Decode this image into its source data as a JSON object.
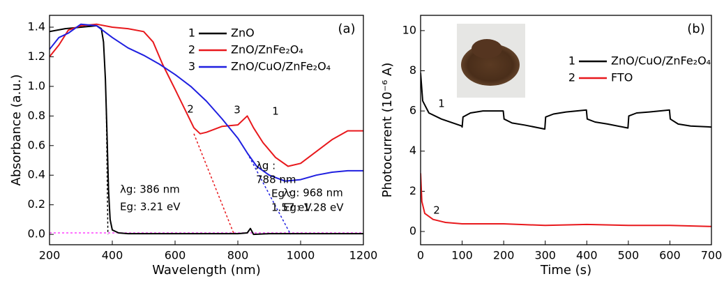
{
  "chart_data": [
    {
      "type": "line",
      "panel": "(a)",
      "x_label": "Wavelength (nm)",
      "y_label": "Absorbance (a.u.)",
      "xlim": [
        200,
        1200
      ],
      "ylim": [
        -0.07,
        1.48
      ],
      "xticks": [
        200,
        400,
        600,
        800,
        1000,
        1200
      ],
      "yticks": [
        {
          "value": 0,
          "label": "0.0"
        },
        0.2,
        0.4,
        0.6,
        0.8,
        {
          "value": 1,
          "label": "1.0"
        },
        1.2,
        1.4
      ],
      "series": [
        {
          "id": "1",
          "name": "ZnO",
          "color": "#000000",
          "x": [
            200,
            250,
            300,
            350,
            365,
            372,
            378,
            383,
            388,
            393,
            400,
            420,
            450,
            600,
            800,
            830,
            840,
            850,
            900,
            1000,
            1200
          ],
          "values": [
            1.37,
            1.39,
            1.4,
            1.41,
            1.39,
            1.3,
            1.05,
            0.7,
            0.3,
            0.1,
            0.03,
            0.01,
            0.005,
            0.005,
            0.005,
            0.01,
            0.04,
            0.0,
            0.005,
            0.005,
            0.005
          ]
        },
        {
          "id": "2",
          "name": "ZnO/ZnFe₂O₄",
          "color": "#e8181c",
          "x": [
            200,
            230,
            260,
            300,
            350,
            400,
            450,
            500,
            530,
            560,
            600,
            630,
            660,
            680,
            700,
            750,
            800,
            830,
            850,
            880,
            920,
            960,
            1000,
            1050,
            1100,
            1150,
            1200
          ],
          "values": [
            1.2,
            1.28,
            1.38,
            1.41,
            1.42,
            1.4,
            1.39,
            1.37,
            1.3,
            1.15,
            0.98,
            0.85,
            0.72,
            0.68,
            0.69,
            0.73,
            0.74,
            0.8,
            0.72,
            0.62,
            0.52,
            0.46,
            0.48,
            0.56,
            0.64,
            0.7,
            0.7
          ]
        },
        {
          "id": "3",
          "name": "ZnO/CuO/ZnFe₂O₄",
          "color": "#1f1fe0",
          "x": [
            200,
            230,
            260,
            300,
            350,
            400,
            450,
            500,
            550,
            600,
            650,
            700,
            750,
            800,
            830,
            860,
            900,
            950,
            1000,
            1050,
            1100,
            1150,
            1200
          ],
          "values": [
            1.25,
            1.33,
            1.36,
            1.42,
            1.41,
            1.33,
            1.26,
            1.21,
            1.15,
            1.08,
            1.0,
            0.9,
            0.78,
            0.65,
            0.55,
            0.46,
            0.4,
            0.36,
            0.37,
            0.4,
            0.42,
            0.43,
            0.43
          ]
        }
      ],
      "fit_lines": [
        {
          "color": "#000000",
          "x": [
            381,
            386
          ],
          "values": [
            0.85,
            0
          ]
        },
        {
          "color": "#e8181c",
          "x": [
            660,
            788
          ],
          "values": [
            0.68,
            0
          ]
        },
        {
          "color": "#1f1fe0",
          "x": [
            830,
            968
          ],
          "values": [
            0.55,
            0
          ]
        },
        {
          "color": "#ff40ff",
          "x": [
            200,
            1200
          ],
          "values": [
            0.01,
            0.01
          ]
        }
      ],
      "annotations": [
        "λg: 386 nm",
        "Eg: 3.21 eV",
        "λg :",
        "788 nm",
        "Eg :",
        "1.57 eV",
        "λg: 968 nm",
        "Eg: 1.28 eV"
      ]
    },
    {
      "type": "line",
      "panel": "(b)",
      "x_label": "Time (s)",
      "y_label": "Photocurrent (10⁻⁶ A)",
      "xlim": [
        0,
        700
      ],
      "ylim": [
        -0.66,
        10.76
      ],
      "xticks": [
        0,
        100,
        200,
        300,
        400,
        500,
        600,
        700
      ],
      "yticks": [
        0,
        2,
        4,
        6,
        8,
        10
      ],
      "series": [
        {
          "id": "1",
          "name": "ZnO/CuO/ZnFe₂O₄",
          "color": "#000000",
          "x": [
            0,
            5,
            20,
            50,
            99,
            100,
            102,
            120,
            150,
            199,
            201,
            220,
            250,
            299,
            301,
            320,
            350,
            399,
            401,
            420,
            450,
            499,
            501,
            520,
            550,
            599,
            601,
            620,
            650,
            700
          ],
          "values": [
            7.9,
            6.5,
            5.9,
            5.6,
            5.25,
            5.2,
            5.7,
            5.9,
            6.0,
            6.0,
            5.6,
            5.4,
            5.3,
            5.1,
            5.7,
            5.85,
            5.95,
            6.05,
            5.6,
            5.45,
            5.35,
            5.15,
            5.75,
            5.9,
            5.95,
            6.05,
            5.6,
            5.35,
            5.25,
            5.2
          ]
        },
        {
          "id": "2",
          "name": "FTO",
          "color": "#e8181c",
          "x": [
            0,
            3,
            10,
            30,
            60,
            100,
            200,
            300,
            400,
            500,
            600,
            700
          ],
          "values": [
            2.9,
            1.5,
            0.9,
            0.6,
            0.45,
            0.38,
            0.38,
            0.3,
            0.35,
            0.3,
            0.3,
            0.25
          ]
        }
      ]
    }
  ]
}
